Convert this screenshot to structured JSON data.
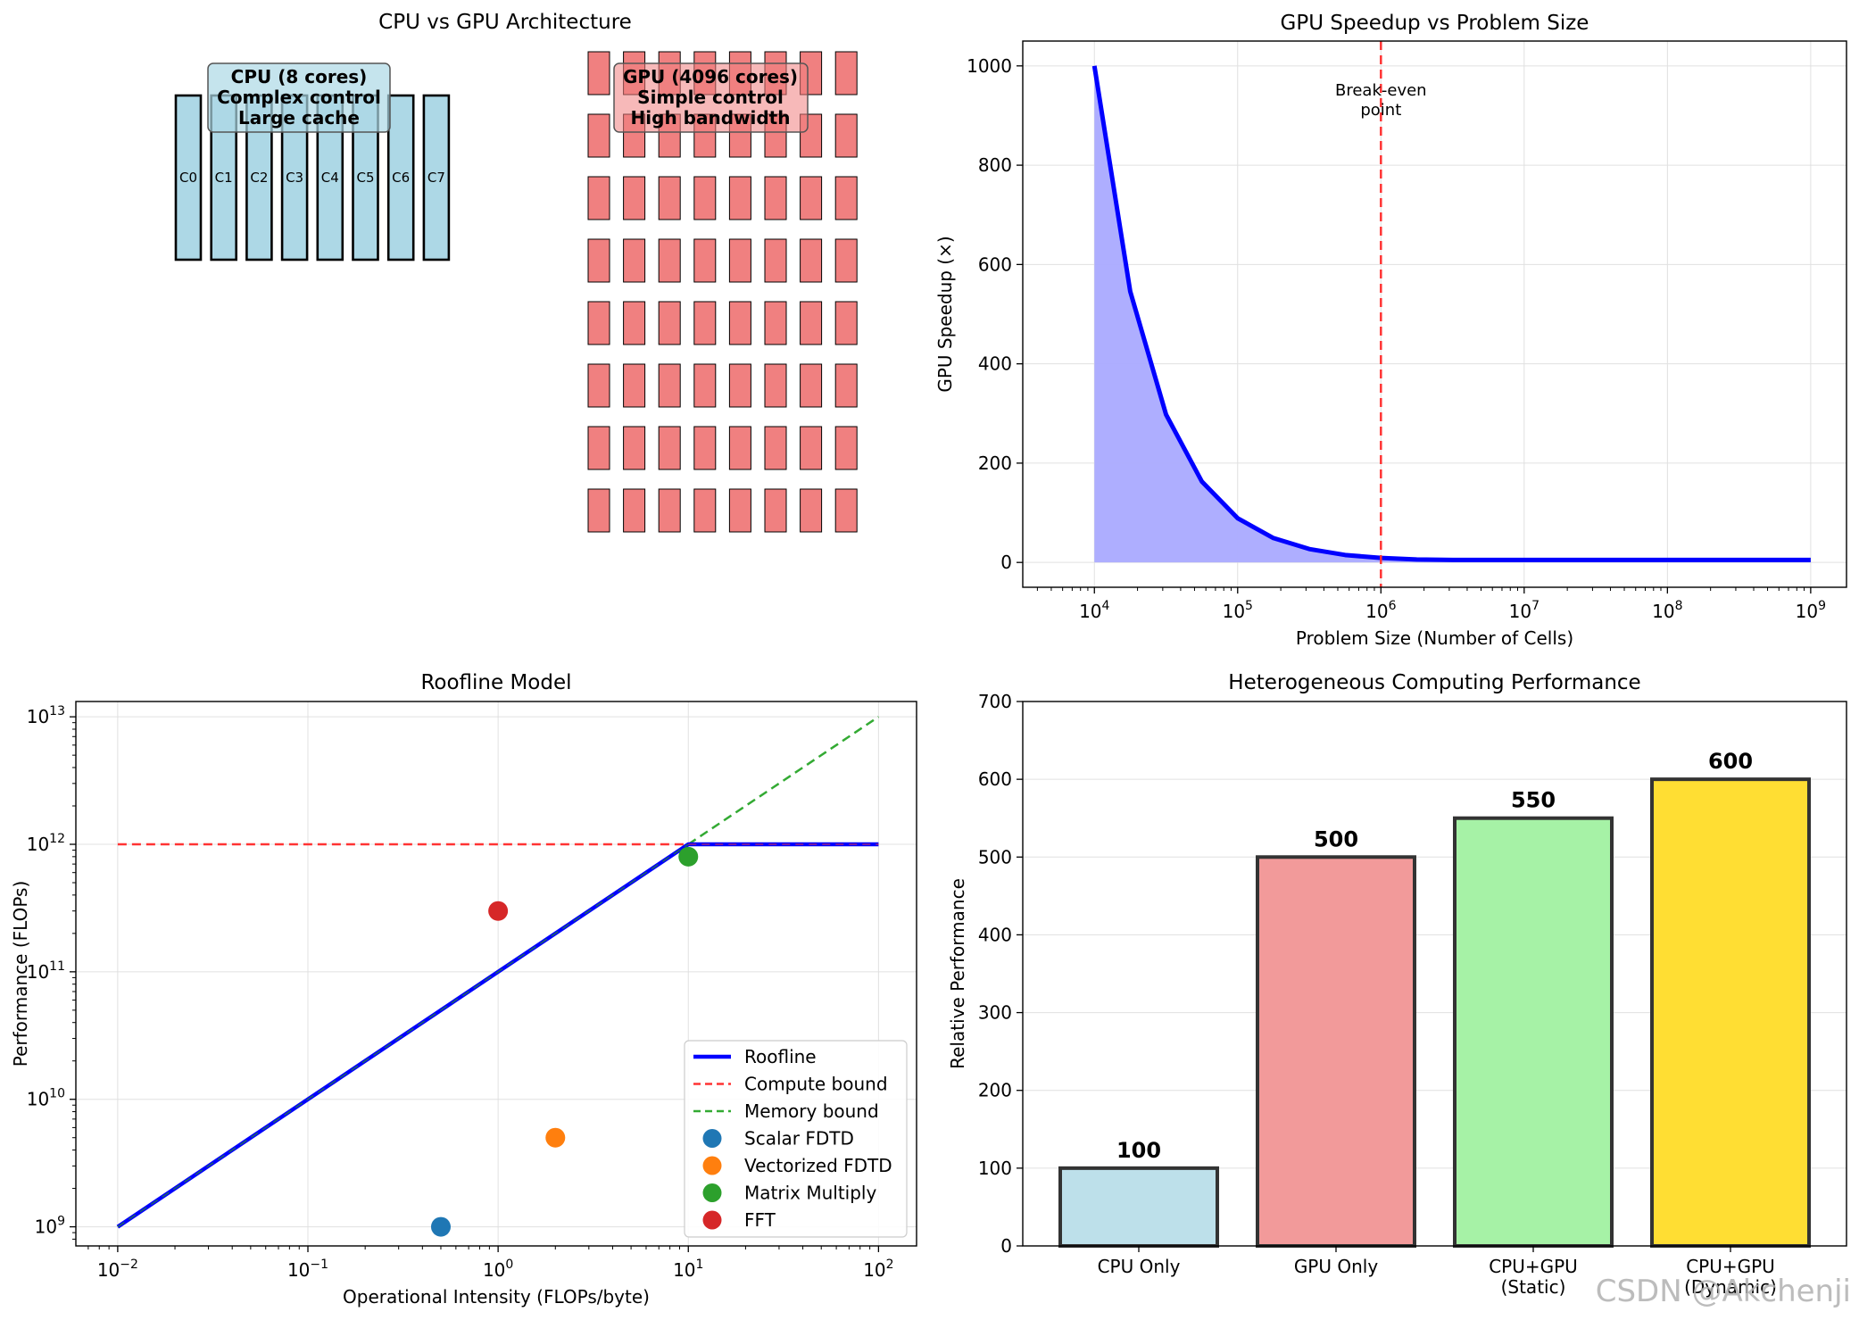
{
  "watermark": "CSDN @Akchenji",
  "chart_data": [
    {
      "type": "diagram",
      "title": "CPU vs GPU Architecture",
      "cpu": {
        "core_labels": [
          "C0",
          "C1",
          "C2",
          "C3",
          "C4",
          "C5",
          "C6",
          "C7"
        ],
        "label_lines": [
          "CPU (8 cores)",
          "Complex control",
          "Large cache"
        ],
        "color": "#add8e6"
      },
      "gpu": {
        "rows": 8,
        "cols": 8,
        "label_lines": [
          "GPU (4096 cores)",
          "Simple control",
          "High bandwidth"
        ],
        "color": "#f08080"
      }
    },
    {
      "type": "area",
      "title": "GPU Speedup vs Problem Size",
      "xlabel": "Problem Size (Number of Cells)",
      "ylabel": "GPU Speedup (×)",
      "xscale": "log",
      "xlim": [
        3.5,
        9.25
      ],
      "ylim": [
        -50,
        1050
      ],
      "xticks": [
        4,
        5,
        6,
        7,
        8,
        9
      ],
      "yticks": [
        0,
        200,
        400,
        600,
        800,
        1000
      ],
      "x_log10": [
        4.0,
        4.25,
        4.5,
        4.75,
        5.0,
        5.25,
        5.5,
        5.75,
        6.0,
        6.25,
        6.5,
        7.0,
        7.5,
        8.0,
        8.5,
        9.0
      ],
      "values": [
        1000,
        546,
        298,
        163,
        89,
        49,
        27,
        15,
        9,
        6,
        5,
        5,
        5,
        5,
        5,
        5
      ],
      "vline_x_log10": 6,
      "annotation_lines": [
        "Break-even",
        "point"
      ],
      "line_color": "#0000ff",
      "fill_color": "#aaaaff",
      "vline_color": "#ff3333",
      "grid": true
    },
    {
      "type": "line",
      "title": "Roofline Model",
      "xlabel": "Operational Intensity (FLOPs/byte)",
      "ylabel": "Performance (FLOPs)",
      "xscale": "log",
      "yscale": "log",
      "xlim_log10": [
        -2.22,
        2.2
      ],
      "ylim_log10": [
        8.85,
        13.12
      ],
      "xticks_log10": [
        -2,
        -1,
        0,
        1,
        2
      ],
      "yticks_log10": [
        9,
        10,
        11,
        12,
        13
      ],
      "roofline": [
        [
          -2,
          9
        ],
        [
          1,
          12
        ],
        [
          2,
          12
        ]
      ],
      "compute_bound": [
        [
          -2,
          12
        ],
        [
          2,
          12
        ]
      ],
      "memory_bound": [
        [
          1,
          12
        ],
        [
          2,
          13
        ]
      ],
      "points": [
        {
          "name": "Scalar FDTD",
          "x_log10": -0.301,
          "y_log10": 9.0,
          "color": "#1f77b4"
        },
        {
          "name": "Vectorized FDTD",
          "x_log10": 0.301,
          "y_log10": 9.699,
          "color": "#ff7f0e"
        },
        {
          "name": "Matrix Multiply",
          "x_log10": 1.0,
          "y_log10": 11.903,
          "color": "#2ca02c"
        },
        {
          "name": "FFT",
          "x_log10": 0.0,
          "y_log10": 11.477,
          "color": "#d62728"
        }
      ],
      "legend": [
        {
          "label": "Roofline",
          "kind": "line",
          "color": "#0000ff"
        },
        {
          "label": "Compute bound",
          "kind": "dash",
          "color": "#ff3333"
        },
        {
          "label": "Memory bound",
          "kind": "dash",
          "color": "#33aa33"
        },
        {
          "label": "Scalar FDTD",
          "kind": "dot",
          "color": "#1f77b4"
        },
        {
          "label": "Vectorized FDTD",
          "kind": "dot",
          "color": "#ff7f0e"
        },
        {
          "label": "Matrix Multiply",
          "kind": "dot",
          "color": "#2ca02c"
        },
        {
          "label": "FFT",
          "kind": "dot",
          "color": "#d62728"
        }
      ],
      "legend_position": "lower-right",
      "grid": true
    },
    {
      "type": "bar",
      "title": "Heterogeneous Computing Performance",
      "ylabel": "Relative Performance",
      "ylim": [
        0,
        700
      ],
      "yticks": [
        0,
        100,
        200,
        300,
        400,
        500,
        600,
        700
      ],
      "categories": [
        [
          "CPU Only"
        ],
        [
          "GPU Only"
        ],
        [
          "CPU+GPU",
          "(Static)"
        ],
        [
          "CPU+GPU",
          "(Dynamic)"
        ]
      ],
      "values": [
        100,
        500,
        550,
        600
      ],
      "value_labels": [
        "100",
        "500",
        "550",
        "600"
      ],
      "colors": [
        "#bde0ea",
        "#f29a9a",
        "#a6f2a6",
        "#ffde33"
      ],
      "grid": true
    }
  ]
}
